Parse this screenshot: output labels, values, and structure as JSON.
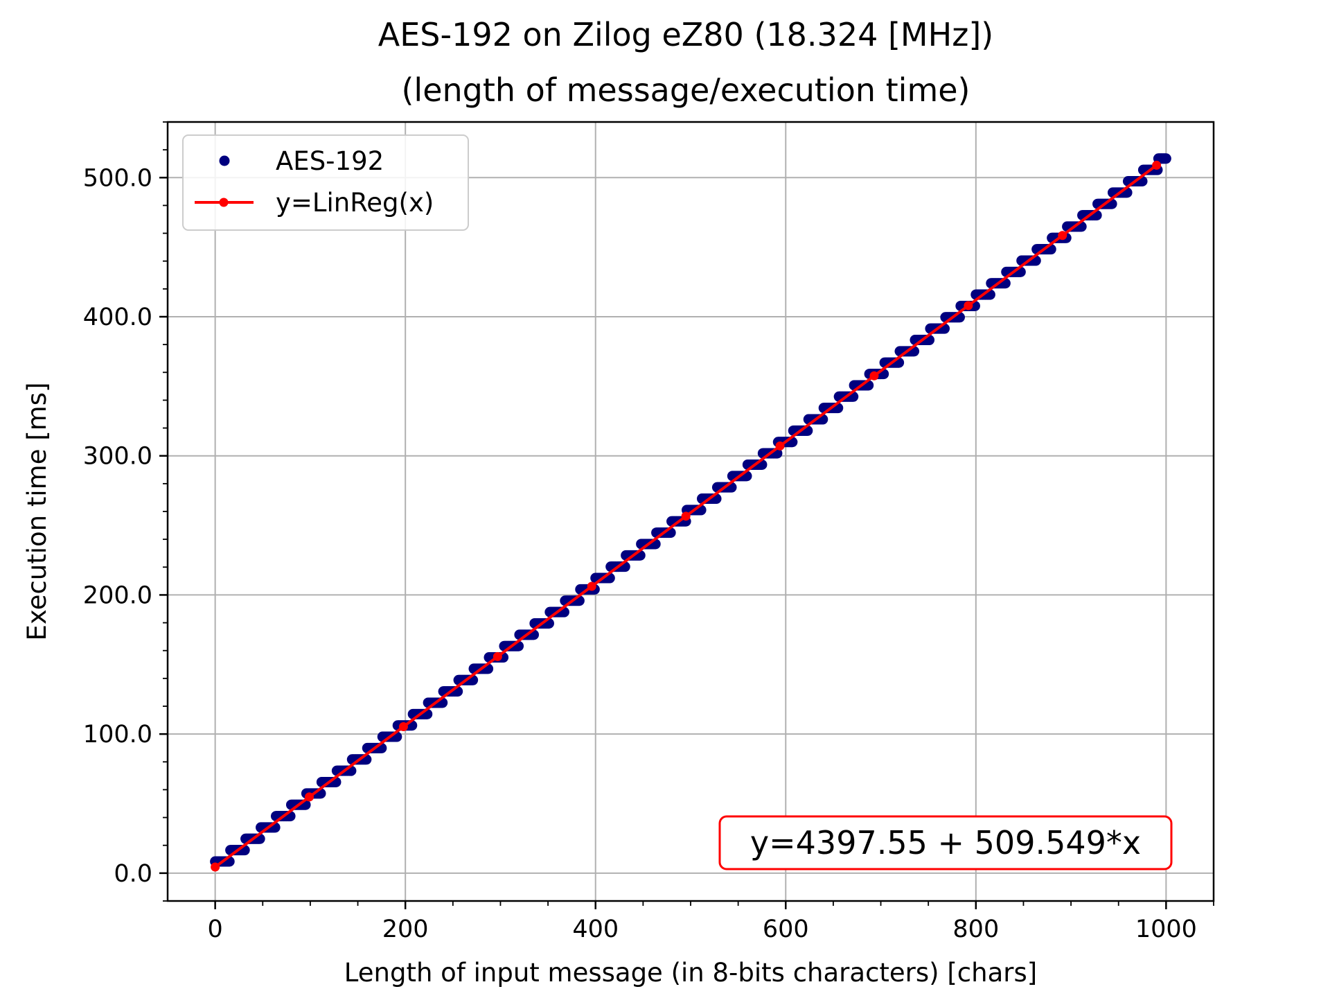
{
  "chart_data": {
    "type": "scatter",
    "title": "AES-192 on Zilog eZ80 (18.324 [MHz])",
    "subtitle": "(length of message/execution time)",
    "xlabel": "Length of input message (in 8-bits characters) [chars]",
    "ylabel": "Execution time [ms]",
    "xlim": [
      -50,
      1050
    ],
    "ylim": [
      -20,
      540
    ],
    "xticks": [
      0,
      200,
      400,
      600,
      800,
      1000
    ],
    "xtick_labels": [
      "0",
      "200",
      "400",
      "600",
      "800",
      "1000"
    ],
    "yticks": [
      0,
      100,
      200,
      300,
      400,
      500
    ],
    "ytick_labels": [
      "0.0",
      "100.0",
      "200.0",
      "300.0",
      "400.0",
      "500.0"
    ],
    "grid": true,
    "legend_position": "top-left",
    "series": [
      {
        "name": "AES-192",
        "kind": "scatter",
        "color": "#00007f",
        "x_range": [
          0,
          1000
        ],
        "x_step": 1,
        "block_size_chars": 16,
        "first_block_ms": 8.4,
        "ms_per_block": 8.15
      },
      {
        "name": "y=LinReg(x)",
        "kind": "line",
        "color": "#ff0000",
        "x": [
          0,
          99,
          198,
          297,
          396,
          495,
          594,
          693,
          792,
          891,
          990
        ],
        "y": [
          4.4,
          54.8,
          105.3,
          155.7,
          206.2,
          256.6,
          307.1,
          357.5,
          408.0,
          458.4,
          508.9
        ]
      }
    ],
    "annotation": {
      "text": "y=4397.55 + 509.549*x",
      "border_color": "#ff0000",
      "position": "bottom-right"
    }
  }
}
